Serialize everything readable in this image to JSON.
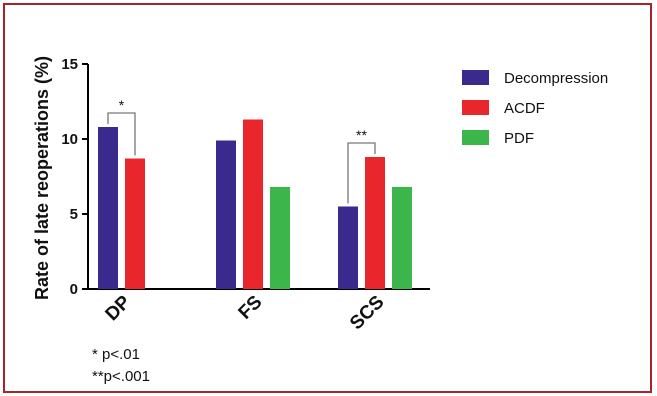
{
  "chart_data": {
    "type": "bar",
    "title": "",
    "xlabel": "",
    "ylabel": "Rate of late reoperations  (%)",
    "ylim": [
      0,
      15
    ],
    "yticks": [
      0,
      5,
      10,
      15
    ],
    "categories": [
      "DP",
      "FS",
      "SCS"
    ],
    "series": [
      {
        "name": "Decompression",
        "color": "#3b2a8e",
        "values": [
          10.8,
          9.9,
          5.5
        ]
      },
      {
        "name": "ACDF",
        "color": "#e8262b",
        "values": [
          8.7,
          11.3,
          8.8
        ]
      },
      {
        "name": "PDF",
        "color": "#3cb54a",
        "values": [
          null,
          6.8,
          6.8
        ]
      }
    ],
    "legend_position": "right",
    "grid": false,
    "annotations": [
      {
        "category": "DP",
        "from_series": 0,
        "to_series": 1,
        "text": "*"
      },
      {
        "category": "SCS",
        "from_series": 0,
        "to_series": 1,
        "text": "**"
      }
    ],
    "footnotes": [
      "* p<.01",
      "**p<.001"
    ]
  },
  "colors": {
    "frame": "#a8232a"
  }
}
